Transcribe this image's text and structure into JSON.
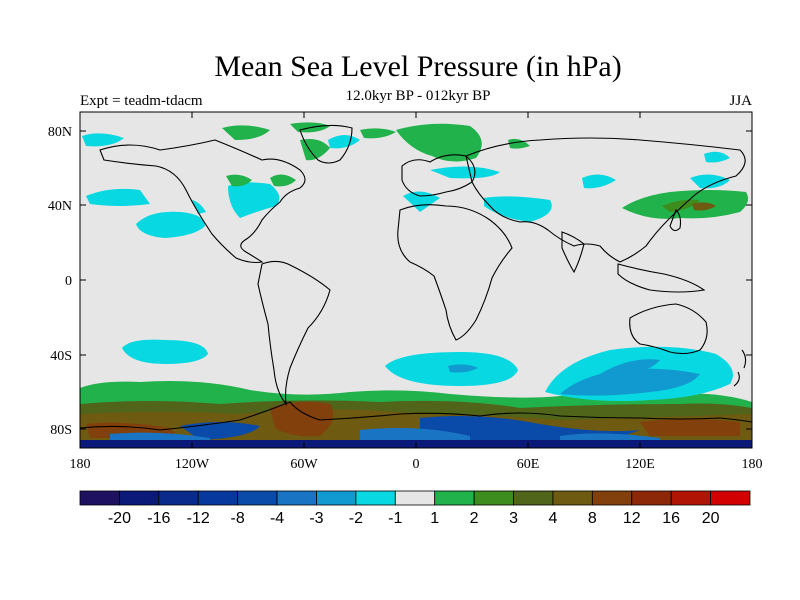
{
  "figure": {
    "title": "Mean Sea Level Pressure (in hPa)",
    "subtitle": "12.0kyr BP - 012kyr BP",
    "experiment": "Expt = teadm-tdacm",
    "season": "JJA"
  },
  "map": {
    "projection": "cylindrical-equidistant",
    "lon_range": [
      -180,
      180
    ],
    "lat_range": [
      -90,
      90
    ],
    "background_color": "#e6e6e6",
    "y_ticks": [
      "80N",
      "40N",
      "0",
      "40S",
      "80S"
    ],
    "x_ticks": [
      "180",
      "120W",
      "60W",
      "0",
      "60E",
      "120E",
      "180"
    ]
  },
  "colorbar": {
    "colors": [
      "#1e1260",
      "#0b1a78",
      "#0a2a8c",
      "#06389e",
      "#0a4aa8",
      "#1a74c4",
      "#119ad0",
      "#08d8e2",
      "#e6e6e6",
      "#21b24c",
      "#3c8c1e",
      "#50641a",
      "#6e5a10",
      "#82400c",
      "#8c2808",
      "#b01404",
      "#d20000"
    ],
    "labels": [
      "-20",
      "-16",
      "-12",
      "-8",
      "-4",
      "-3",
      "-2",
      "-1",
      "1",
      "2",
      "3",
      "4",
      "8",
      "12",
      "16",
      "20"
    ]
  }
}
